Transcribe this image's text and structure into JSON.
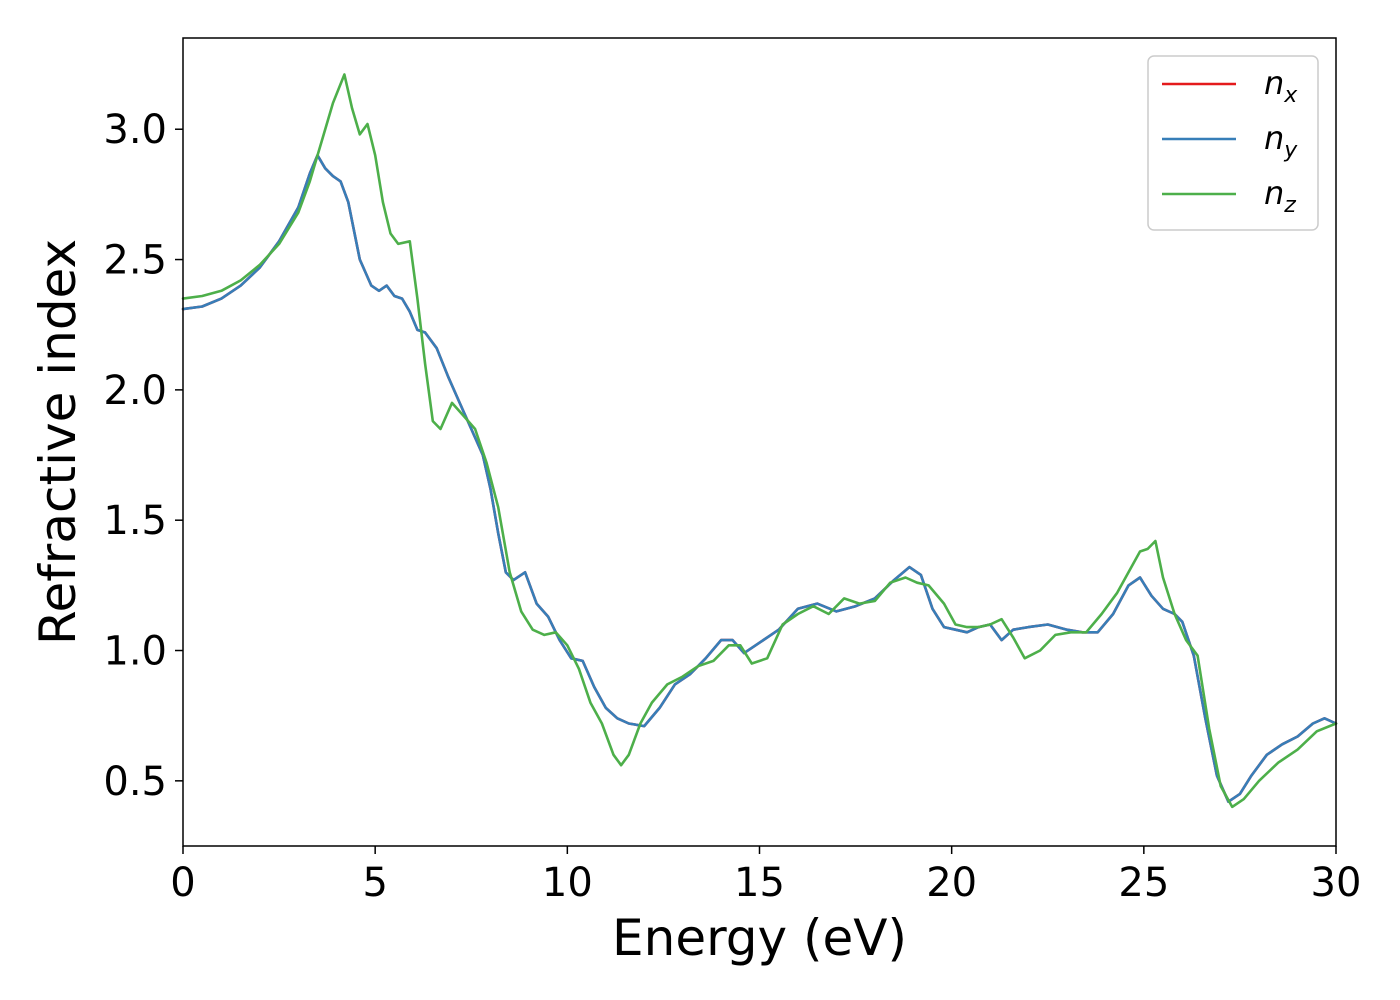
{
  "chart_data": {
    "type": "line",
    "xlabel": "Energy (eV)",
    "ylabel": "Refractive index",
    "xlim": [
      0,
      30
    ],
    "ylim": [
      0.25,
      3.35
    ],
    "xticks": [
      0,
      5,
      10,
      15,
      20,
      25,
      30
    ],
    "xtick_labels": [
      "0",
      "5",
      "10",
      "15",
      "20",
      "25",
      "30"
    ],
    "yticks": [
      0.5,
      1.0,
      1.5,
      2.0,
      2.5,
      3.0
    ],
    "ytick_labels": [
      "0.5",
      "1.0",
      "1.5",
      "2.0",
      "2.5",
      "3.0"
    ],
    "grid": false,
    "legend": {
      "placement": "top-right",
      "entries": [
        {
          "base": "n",
          "sub": "x",
          "color": "#e41a1c"
        },
        {
          "base": "n",
          "sub": "y",
          "color": "#377eb8"
        },
        {
          "base": "n",
          "sub": "z",
          "color": "#4daf4a"
        }
      ]
    },
    "series": [
      {
        "name": "nx",
        "color": "#e41a1c",
        "x": [
          0,
          0.5,
          1,
          1.5,
          2,
          2.5,
          3,
          3.3,
          3.5,
          3.7,
          3.9,
          4.1,
          4.3,
          4.6,
          4.9,
          5.1,
          5.3,
          5.5,
          5.7,
          5.9,
          6.1,
          6.3,
          6.6,
          6.9,
          7.2,
          7.5,
          7.8,
          8.0,
          8.2,
          8.4,
          8.6,
          8.9,
          9.2,
          9.5,
          9.8,
          10.1,
          10.4,
          10.7,
          11.0,
          11.3,
          11.6,
          12.0,
          12.4,
          12.8,
          13.2,
          13.6,
          14.0,
          14.3,
          14.6,
          15.0,
          15.5,
          16.0,
          16.5,
          17.0,
          17.5,
          18.0,
          18.5,
          18.9,
          19.2,
          19.5,
          19.8,
          20.1,
          20.4,
          20.7,
          21.0,
          21.3,
          21.6,
          22.0,
          22.5,
          23.0,
          23.4,
          23.8,
          24.2,
          24.6,
          24.9,
          25.2,
          25.5,
          25.8,
          26.0,
          26.3,
          26.6,
          26.9,
          27.2,
          27.5,
          27.8,
          28.2,
          28.6,
          29.0,
          29.4,
          29.7,
          30.0
        ],
        "values": [
          2.31,
          2.32,
          2.35,
          2.4,
          2.47,
          2.57,
          2.7,
          2.83,
          2.9,
          2.85,
          2.82,
          2.8,
          2.72,
          2.5,
          2.4,
          2.38,
          2.4,
          2.36,
          2.35,
          2.3,
          2.23,
          2.22,
          2.16,
          2.05,
          1.95,
          1.85,
          1.75,
          1.62,
          1.45,
          1.3,
          1.27,
          1.3,
          1.18,
          1.13,
          1.04,
          0.97,
          0.96,
          0.86,
          0.78,
          0.74,
          0.72,
          0.71,
          0.78,
          0.87,
          0.91,
          0.97,
          1.04,
          1.04,
          0.99,
          1.03,
          1.08,
          1.16,
          1.18,
          1.15,
          1.17,
          1.2,
          1.27,
          1.32,
          1.29,
          1.16,
          1.09,
          1.08,
          1.07,
          1.09,
          1.1,
          1.04,
          1.08,
          1.09,
          1.1,
          1.08,
          1.07,
          1.07,
          1.14,
          1.25,
          1.28,
          1.21,
          1.16,
          1.14,
          1.11,
          0.98,
          0.74,
          0.52,
          0.42,
          0.45,
          0.52,
          0.6,
          0.64,
          0.67,
          0.72,
          0.74,
          0.72
        ]
      },
      {
        "name": "ny",
        "color": "#377eb8",
        "x": [
          0,
          0.5,
          1,
          1.5,
          2,
          2.5,
          3,
          3.3,
          3.5,
          3.7,
          3.9,
          4.1,
          4.3,
          4.6,
          4.9,
          5.1,
          5.3,
          5.5,
          5.7,
          5.9,
          6.1,
          6.3,
          6.6,
          6.9,
          7.2,
          7.5,
          7.8,
          8.0,
          8.2,
          8.4,
          8.6,
          8.9,
          9.2,
          9.5,
          9.8,
          10.1,
          10.4,
          10.7,
          11.0,
          11.3,
          11.6,
          12.0,
          12.4,
          12.8,
          13.2,
          13.6,
          14.0,
          14.3,
          14.6,
          15.0,
          15.5,
          16.0,
          16.5,
          17.0,
          17.5,
          18.0,
          18.5,
          18.9,
          19.2,
          19.5,
          19.8,
          20.1,
          20.4,
          20.7,
          21.0,
          21.3,
          21.6,
          22.0,
          22.5,
          23.0,
          23.4,
          23.8,
          24.2,
          24.6,
          24.9,
          25.2,
          25.5,
          25.8,
          26.0,
          26.3,
          26.6,
          26.9,
          27.2,
          27.5,
          27.8,
          28.2,
          28.6,
          29.0,
          29.4,
          29.7,
          30.0
        ],
        "values": [
          2.31,
          2.32,
          2.35,
          2.4,
          2.47,
          2.57,
          2.7,
          2.83,
          2.9,
          2.85,
          2.82,
          2.8,
          2.72,
          2.5,
          2.4,
          2.38,
          2.4,
          2.36,
          2.35,
          2.3,
          2.23,
          2.22,
          2.16,
          2.05,
          1.95,
          1.85,
          1.75,
          1.62,
          1.45,
          1.3,
          1.27,
          1.3,
          1.18,
          1.13,
          1.04,
          0.97,
          0.96,
          0.86,
          0.78,
          0.74,
          0.72,
          0.71,
          0.78,
          0.87,
          0.91,
          0.97,
          1.04,
          1.04,
          0.99,
          1.03,
          1.08,
          1.16,
          1.18,
          1.15,
          1.17,
          1.2,
          1.27,
          1.32,
          1.29,
          1.16,
          1.09,
          1.08,
          1.07,
          1.09,
          1.1,
          1.04,
          1.08,
          1.09,
          1.1,
          1.08,
          1.07,
          1.07,
          1.14,
          1.25,
          1.28,
          1.21,
          1.16,
          1.14,
          1.11,
          0.98,
          0.74,
          0.52,
          0.42,
          0.45,
          0.52,
          0.6,
          0.64,
          0.67,
          0.72,
          0.74,
          0.72
        ]
      },
      {
        "name": "nz",
        "color": "#4daf4a",
        "x": [
          0,
          0.5,
          1,
          1.5,
          2,
          2.5,
          3,
          3.3,
          3.6,
          3.9,
          4.2,
          4.4,
          4.6,
          4.8,
          5.0,
          5.2,
          5.4,
          5.6,
          5.9,
          6.1,
          6.3,
          6.5,
          6.7,
          7.0,
          7.3,
          7.6,
          7.9,
          8.2,
          8.5,
          8.8,
          9.1,
          9.4,
          9.7,
          10.0,
          10.3,
          10.6,
          10.9,
          11.2,
          11.4,
          11.6,
          11.9,
          12.2,
          12.6,
          13.0,
          13.4,
          13.8,
          14.2,
          14.5,
          14.8,
          15.2,
          15.6,
          16.0,
          16.4,
          16.8,
          17.2,
          17.6,
          18.0,
          18.4,
          18.8,
          19.1,
          19.4,
          19.8,
          20.1,
          20.4,
          20.7,
          21.0,
          21.3,
          21.6,
          21.9,
          22.3,
          22.7,
          23.1,
          23.5,
          23.9,
          24.3,
          24.6,
          24.9,
          25.1,
          25.3,
          25.5,
          25.8,
          26.1,
          26.4,
          26.7,
          27.0,
          27.3,
          27.6,
          28.0,
          28.5,
          29.0,
          29.5,
          30.0
        ],
        "values": [
          2.35,
          2.36,
          2.38,
          2.42,
          2.48,
          2.56,
          2.68,
          2.8,
          2.95,
          3.1,
          3.21,
          3.08,
          2.98,
          3.02,
          2.9,
          2.72,
          2.6,
          2.56,
          2.57,
          2.35,
          2.1,
          1.88,
          1.85,
          1.95,
          1.9,
          1.85,
          1.72,
          1.55,
          1.3,
          1.15,
          1.08,
          1.06,
          1.07,
          1.02,
          0.93,
          0.8,
          0.72,
          0.6,
          0.56,
          0.6,
          0.72,
          0.8,
          0.87,
          0.9,
          0.94,
          0.96,
          1.02,
          1.02,
          0.95,
          0.97,
          1.1,
          1.14,
          1.17,
          1.14,
          1.2,
          1.18,
          1.19,
          1.26,
          1.28,
          1.26,
          1.25,
          1.18,
          1.1,
          1.09,
          1.09,
          1.1,
          1.12,
          1.05,
          0.97,
          1.0,
          1.06,
          1.07,
          1.07,
          1.14,
          1.22,
          1.3,
          1.38,
          1.39,
          1.42,
          1.28,
          1.14,
          1.04,
          0.98,
          0.7,
          0.48,
          0.4,
          0.43,
          0.5,
          0.57,
          0.62,
          0.69,
          0.72
        ]
      }
    ]
  }
}
